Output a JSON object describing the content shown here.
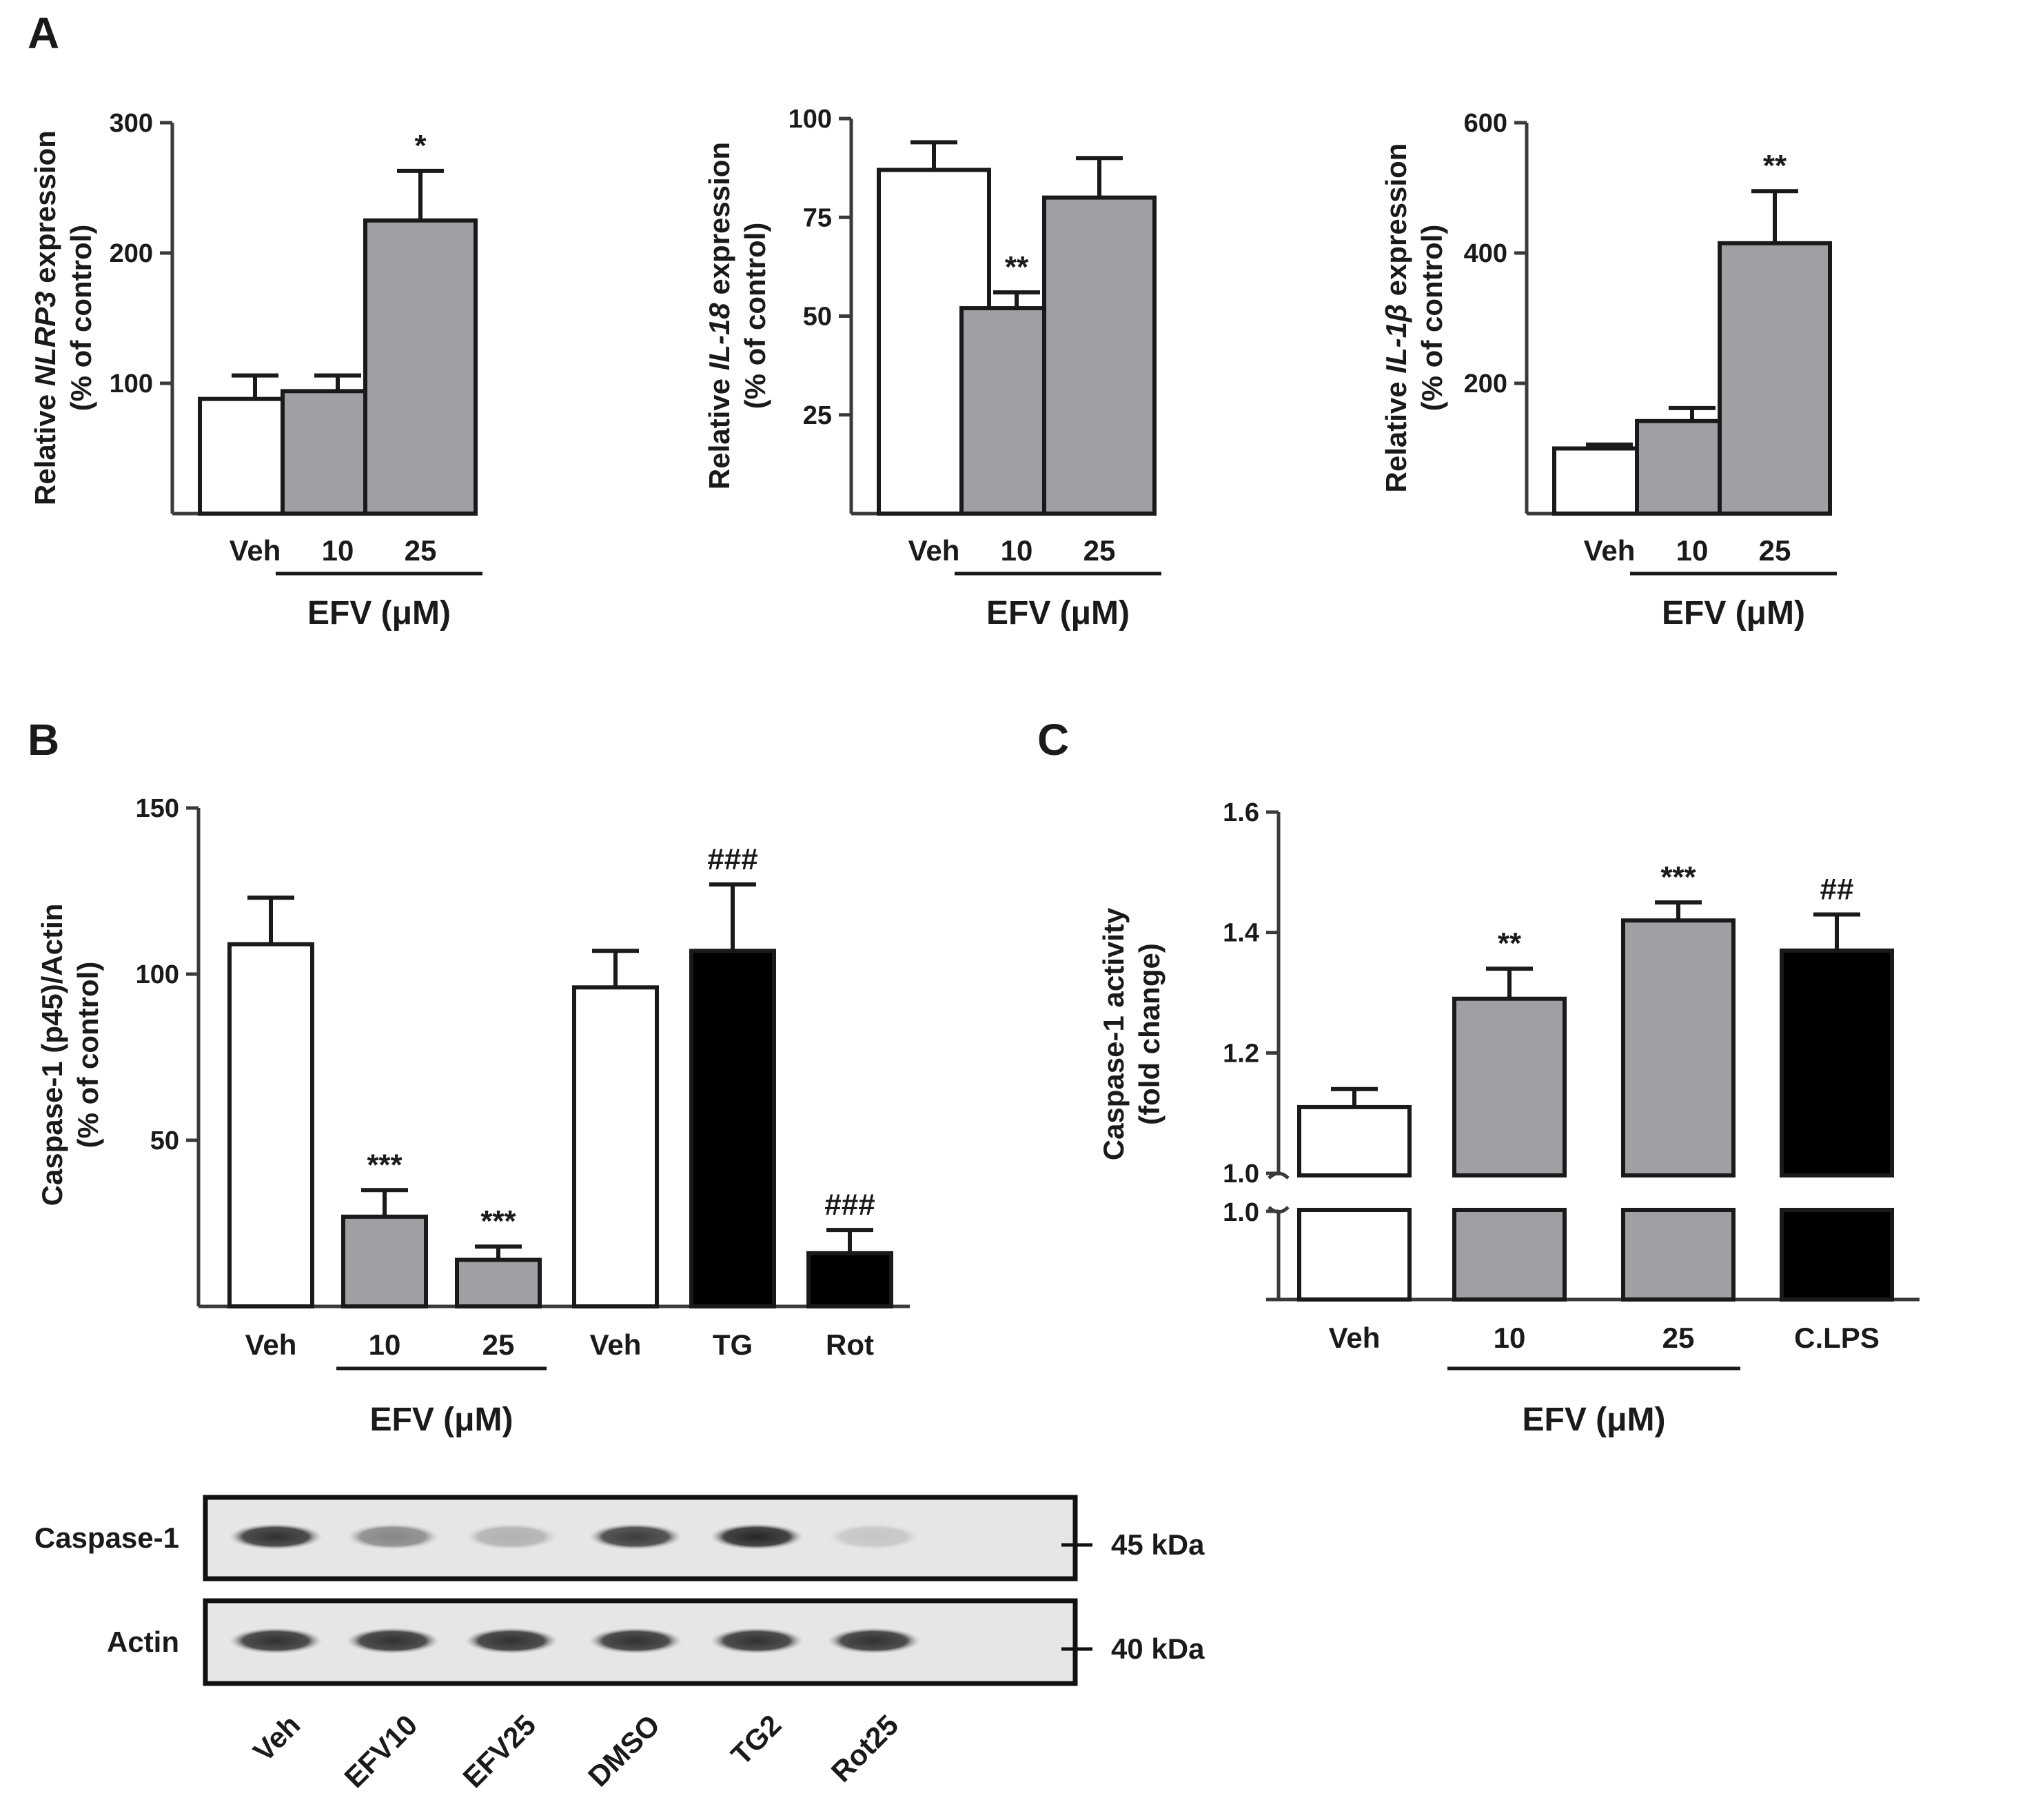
{
  "panel_labels": {
    "a": "A",
    "b": "B",
    "c": "C"
  },
  "colors": {
    "veh": "#ffffff",
    "efv": "#a0a0a4",
    "pos": "#000000",
    "axis": "#3a3a3a"
  },
  "group_label": "EFV (μM)",
  "chart_data": [
    {
      "id": "a1",
      "type": "bar",
      "ylabel_parts": [
        "Relative ",
        "NLRP3",
        " expression"
      ],
      "ylabel2": "(% of control)",
      "ylim": [
        0,
        300
      ],
      "yticks": [
        100,
        200,
        300
      ],
      "categories": [
        "Veh",
        "10",
        "25"
      ],
      "values": [
        88,
        94,
        225
      ],
      "errors": [
        18,
        12,
        38
      ],
      "fills": [
        "veh",
        "efv",
        "efv"
      ],
      "significance": [
        "",
        "",
        "*"
      ],
      "group_label": "EFV (μM)"
    },
    {
      "id": "a2",
      "type": "bar",
      "ylabel_parts": [
        "Relative ",
        "IL-18",
        " expression"
      ],
      "ylabel2": "(% of control)",
      "ylim": [
        0,
        100
      ],
      "yticks": [
        25,
        50,
        75,
        100
      ],
      "categories": [
        "Veh",
        "10",
        "25"
      ],
      "values": [
        87,
        52,
        80
      ],
      "errors": [
        7,
        4,
        10
      ],
      "fills": [
        "veh",
        "efv",
        "efv"
      ],
      "significance": [
        "",
        "**",
        ""
      ],
      "group_label": "EFV (μM)"
    },
    {
      "id": "a3",
      "type": "bar",
      "ylabel_parts": [
        "Relative ",
        "IL-1β",
        " expression"
      ],
      "ylabel2": "(% of control)",
      "ylim": [
        0,
        600
      ],
      "yticks": [
        200,
        400,
        600
      ],
      "categories": [
        "Veh",
        "10",
        "25"
      ],
      "values": [
        100,
        142,
        415
      ],
      "errors": [
        6,
        20,
        80
      ],
      "fills": [
        "veh",
        "efv",
        "efv"
      ],
      "significance": [
        "",
        "",
        "**"
      ],
      "group_label": "EFV (μM)"
    },
    {
      "id": "b",
      "type": "bar",
      "ylabel": "Caspase-1 (p45)/Actin",
      "ylabel2": "(% of control)",
      "ylim": [
        0,
        150
      ],
      "yticks": [
        50,
        100,
        150
      ],
      "categories": [
        "Veh",
        "10",
        "25",
        "Veh",
        "TG",
        "Rot"
      ],
      "values": [
        109,
        27,
        14,
        96,
        107,
        16
      ],
      "errors": [
        14,
        8,
        4,
        11,
        20,
        7
      ],
      "fills": [
        "veh",
        "efv",
        "efv",
        "veh",
        "pos",
        "pos"
      ],
      "significance": [
        "",
        "***",
        "***",
        "",
        "###",
        "###"
      ],
      "group_label": "EFV (μM)"
    },
    {
      "id": "c",
      "type": "bar",
      "ylabel": "Caspase-1 activity",
      "ylabel2": "(fold change)",
      "ylim": [
        1.0,
        1.6
      ],
      "yticks": [
        1.0,
        1.2,
        1.4,
        1.6
      ],
      "lower_tick": "1.0",
      "y_axis_break": true,
      "categories": [
        "Veh",
        "10",
        "25",
        "C.LPS"
      ],
      "values": [
        1.11,
        1.29,
        1.42,
        1.37
      ],
      "errors": [
        0.03,
        0.05,
        0.03,
        0.06
      ],
      "fills": [
        "veh",
        "efv",
        "efv",
        "pos"
      ],
      "significance": [
        "",
        "**",
        "***",
        "##"
      ],
      "group_label": "EFV (μM)"
    }
  ],
  "blot": {
    "rows": [
      {
        "label": "Caspase-1",
        "size": "45 kDa",
        "intensities": [
          0.85,
          0.45,
          0.25,
          0.8,
          0.9,
          0.15
        ]
      },
      {
        "label": "Actin",
        "size": "40 kDa",
        "intensities": [
          0.85,
          0.85,
          0.85,
          0.85,
          0.85,
          0.85
        ]
      }
    ],
    "lanes": [
      "Veh",
      "EFV10",
      "EFV25",
      "DMSO",
      "TG2",
      "Rot25"
    ]
  }
}
